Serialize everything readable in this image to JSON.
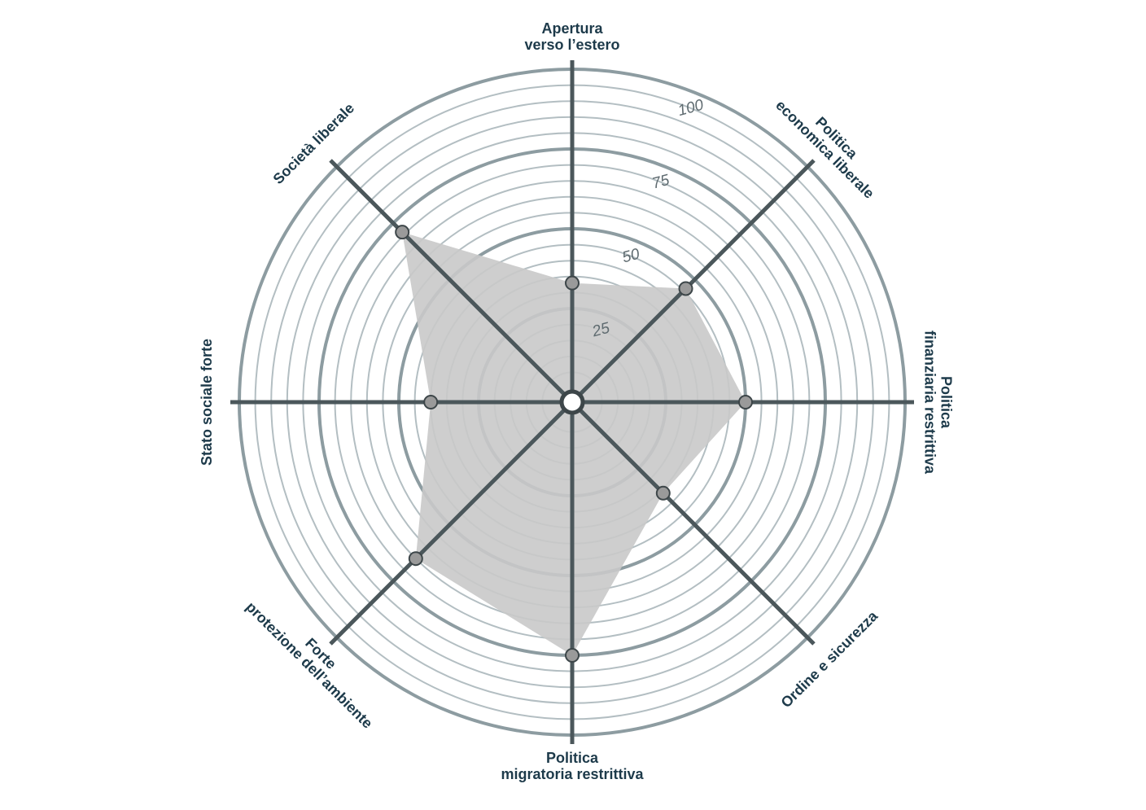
{
  "chart_data": {
    "type": "radar",
    "categories": [
      [
        "Apertura",
        "verso l’estero"
      ],
      [
        "Politica",
        "economica liberale"
      ],
      [
        "Politica",
        "finanziaria restrittiva"
      ],
      [
        "Ordine e sicurezza"
      ],
      [
        "Politica",
        "migratoria restrittiva"
      ],
      [
        "Forte",
        "protezione dell’ambiente"
      ],
      [
        "Stato sociale forte"
      ],
      [
        "Società liberale"
      ]
    ],
    "values": [
      33,
      46,
      50,
      36,
      75,
      65,
      40,
      71
    ],
    "color": "#c9c9c9",
    "rlim": [
      0,
      100
    ],
    "rticks": [
      25,
      50,
      75,
      100
    ],
    "grid": true
  }
}
